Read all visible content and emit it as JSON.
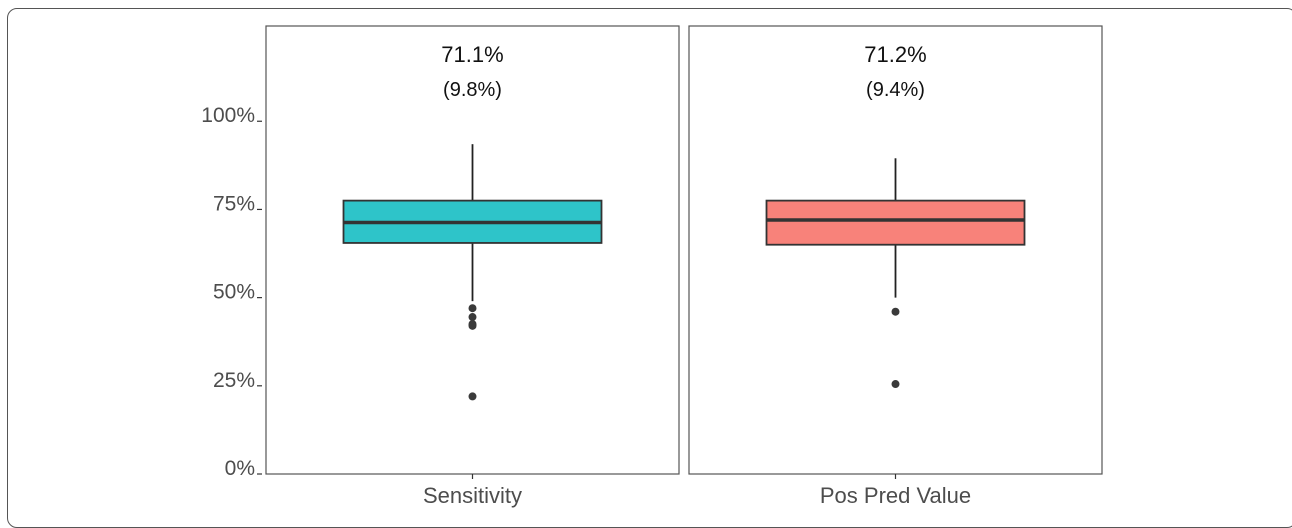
{
  "chart_data": {
    "type": "box",
    "ylim": [
      0,
      1.27
    ],
    "yticks": [
      {
        "value": 0,
        "label": "0%"
      },
      {
        "value": 0.25,
        "label": "25%"
      },
      {
        "value": 0.5,
        "label": "50%"
      },
      {
        "value": 0.75,
        "label": "75%"
      },
      {
        "value": 1.0,
        "label": "100%"
      }
    ],
    "grid": false,
    "panels": [
      {
        "label": "Sensitivity",
        "mean_label": "71.1%",
        "sd_label": "(9.8%)",
        "color": "#2EC4C9",
        "whisker_low": 0.49,
        "q1": 0.655,
        "median": 0.713,
        "q3": 0.775,
        "whisker_high": 0.935,
        "outliers": [
          0.47,
          0.445,
          0.425,
          0.42,
          0.22
        ]
      },
      {
        "label": "Pos Pred Value",
        "mean_label": "71.2%",
        "sd_label": "(9.4%)",
        "color": "#F8827A",
        "whisker_low": 0.5,
        "q1": 0.65,
        "median": 0.72,
        "q3": 0.775,
        "whisker_high": 0.895,
        "outliers": [
          0.46,
          0.255
        ]
      }
    ]
  }
}
